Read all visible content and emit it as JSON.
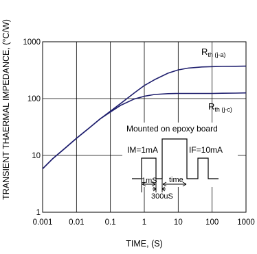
{
  "chart_data": {
    "type": "line",
    "title": "",
    "xlabel": "TIME, (S)",
    "ylabel": "TRANSIENT THAERMAL IMPEDANCE, (°C/W)",
    "x_scale": "log",
    "y_scale": "log",
    "xlim": [
      0.001,
      1000
    ],
    "ylim": [
      1,
      1000
    ],
    "grid": true,
    "x_ticks": [
      "0.001",
      "0.01",
      "0.1",
      "1",
      "10",
      "100",
      "1000"
    ],
    "y_ticks": [
      "1",
      "10",
      "100",
      "1000"
    ],
    "line_color": "#1f1f6e",
    "series": [
      {
        "name": "Rth (j-a)",
        "label_main": "R",
        "label_sub": "th (j-a)",
        "points": [
          {
            "x": 0.001,
            "y": 5.8
          },
          {
            "x": 0.002,
            "y": 8.8
          },
          {
            "x": 0.005,
            "y": 14
          },
          {
            "x": 0.01,
            "y": 20
          },
          {
            "x": 0.02,
            "y": 28
          },
          {
            "x": 0.05,
            "y": 44
          },
          {
            "x": 0.1,
            "y": 60
          },
          {
            "x": 0.2,
            "y": 82
          },
          {
            "x": 0.5,
            "y": 125
          },
          {
            "x": 1,
            "y": 170
          },
          {
            "x": 2,
            "y": 215
          },
          {
            "x": 5,
            "y": 280
          },
          {
            "x": 10,
            "y": 320
          },
          {
            "x": 20,
            "y": 345
          },
          {
            "x": 50,
            "y": 360
          },
          {
            "x": 100,
            "y": 365
          },
          {
            "x": 200,
            "y": 368
          },
          {
            "x": 500,
            "y": 370
          },
          {
            "x": 1000,
            "y": 372
          }
        ]
      },
      {
        "name": "Rth (j-c)",
        "label_main": "R",
        "label_sub": "th (j-c)",
        "points": [
          {
            "x": 0.001,
            "y": 5.8
          },
          {
            "x": 0.002,
            "y": 8.8
          },
          {
            "x": 0.005,
            "y": 14
          },
          {
            "x": 0.01,
            "y": 20
          },
          {
            "x": 0.02,
            "y": 28
          },
          {
            "x": 0.05,
            "y": 44
          },
          {
            "x": 0.1,
            "y": 58
          },
          {
            "x": 0.2,
            "y": 76
          },
          {
            "x": 0.5,
            "y": 98
          },
          {
            "x": 1,
            "y": 110
          },
          {
            "x": 2,
            "y": 118
          },
          {
            "x": 5,
            "y": 122
          },
          {
            "x": 10,
            "y": 123
          },
          {
            "x": 20,
            "y": 123
          },
          {
            "x": 50,
            "y": 123
          },
          {
            "x": 100,
            "y": 123
          },
          {
            "x": 200,
            "y": 124
          },
          {
            "x": 500,
            "y": 125
          },
          {
            "x": 1000,
            "y": 126
          }
        ]
      }
    ],
    "inset": {
      "caption": "Mounted on epoxy board",
      "im_label": "IM=1mA",
      "if_label": "IF=10mA",
      "ms_label": "1mS",
      "time_label": "time",
      "us_label": "300uS"
    }
  }
}
